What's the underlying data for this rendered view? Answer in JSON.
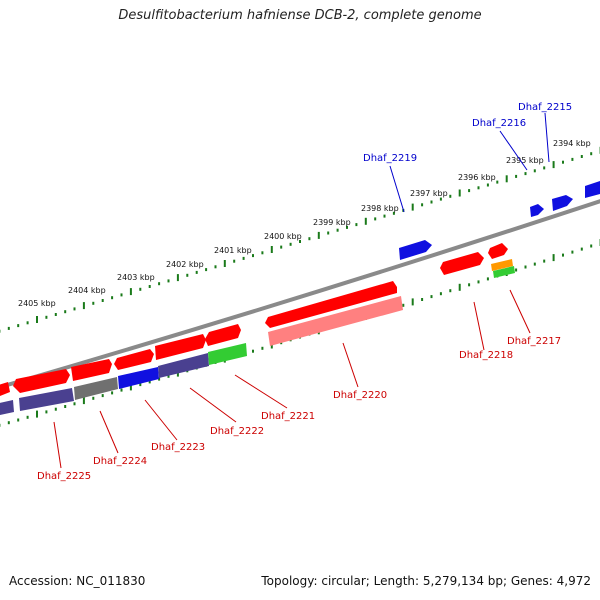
{
  "title": "Desulfitobacterium hafniense DCB-2, complete genome",
  "footer": {
    "accession": "Accession: NC_011830",
    "summary": "Topology: circular; Length: 5,279,134 bp; Genes: 4,972"
  },
  "colors": {
    "backbone": "#8a8a8a",
    "tick": "#1a7a1a",
    "forward_label": "#0000cc",
    "reverse_label": "#cc0000",
    "red": "#ff0000",
    "blue": "#1010e0",
    "green": "#33cc33",
    "gray": "#707070",
    "darkblue": "#4a4090",
    "pink": "#ff8080",
    "orange": "#ff9900"
  },
  "kbp_ticks": [
    "2394 kbp",
    "2395 kbp",
    "2396 kbp",
    "2397 kbp",
    "2398 kbp",
    "2399 kbp",
    "2400 kbp",
    "2401 kbp",
    "2402 kbp",
    "2403 kbp",
    "2404 kbp",
    "2405 kbp"
  ],
  "gene_labels": [
    {
      "text": "Dhaf_2215",
      "strand": "forward"
    },
    {
      "text": "Dhaf_2216",
      "strand": "forward"
    },
    {
      "text": "Dhaf_2219",
      "strand": "forward"
    },
    {
      "text": "Dhaf_2217",
      "strand": "reverse"
    },
    {
      "text": "Dhaf_2218",
      "strand": "reverse"
    },
    {
      "text": "Dhaf_2220",
      "strand": "reverse"
    },
    {
      "text": "Dhaf_2221",
      "strand": "reverse"
    },
    {
      "text": "Dhaf_2222",
      "strand": "reverse"
    },
    {
      "text": "Dhaf_2223",
      "strand": "reverse"
    },
    {
      "text": "Dhaf_2224",
      "strand": "reverse"
    },
    {
      "text": "Dhaf_2225",
      "strand": "reverse"
    }
  ]
}
